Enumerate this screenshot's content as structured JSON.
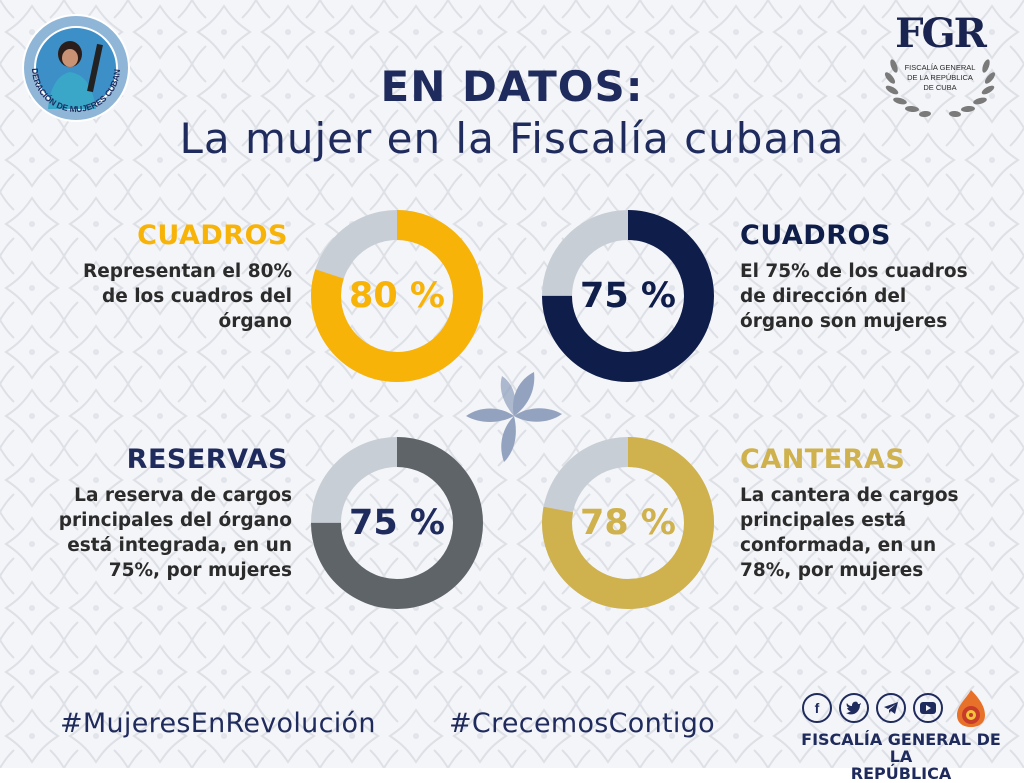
{
  "colors": {
    "navy": "#1f2b5c",
    "amber": "#f7b308",
    "dark_navy": "#0f1d4a",
    "slate": "#5f6468",
    "gold": "#cfb14d",
    "track": "#c8ced6"
  },
  "logos": {
    "fmc": {
      "icon": "fmc-seal-icon",
      "text": "FEDERACIÓN DE MUJERES CUBANAS"
    },
    "fgr": {
      "icon": "fgr-emblem-icon",
      "mark": "FGR",
      "line1": "FISCALÍA GENERAL",
      "line2": "DE LA REPÚBLICA",
      "line3": "DE CUBA"
    }
  },
  "title": {
    "line1": "EN DATOS:",
    "line2": "La mujer en la Fiscalía cubana"
  },
  "stats": [
    {
      "heading": "CUADROS",
      "lines": [
        "Representan el 80%",
        "de los cuadros del",
        "órgano"
      ],
      "value": 80,
      "label": "80 %"
    },
    {
      "heading": "CUADROS",
      "lines": [
        "El 75% de los cuadros",
        "de dirección del",
        "órgano son mujeres"
      ],
      "value": 75,
      "label": "75 %"
    },
    {
      "heading": "RESERVAS",
      "lines": [
        "La reserva de cargos",
        "principales del órgano",
        "está integrada, en un",
        "75%, por mujeres"
      ],
      "value": 75,
      "label": "75 %"
    },
    {
      "heading": "CANTERAS",
      "lines": [
        "La cantera de cargos",
        "principales está",
        "conformada, en un",
        "78%, por mujeres"
      ],
      "value": 78,
      "label": "78 %"
    }
  ],
  "hashtags": [
    "#MujeresEnRevolución",
    "#CrecemosContigo"
  ],
  "social": [
    {
      "icon": "facebook-icon",
      "glyph": "f"
    },
    {
      "icon": "twitter-icon",
      "glyph": "🐦"
    },
    {
      "icon": "telegram-icon",
      "glyph": "➤"
    },
    {
      "icon": "youtube-icon",
      "glyph": "▶"
    }
  ],
  "footer": {
    "line1": "FISCALÍA GENERAL DE LA",
    "line2": "REPÚBLICA"
  }
}
